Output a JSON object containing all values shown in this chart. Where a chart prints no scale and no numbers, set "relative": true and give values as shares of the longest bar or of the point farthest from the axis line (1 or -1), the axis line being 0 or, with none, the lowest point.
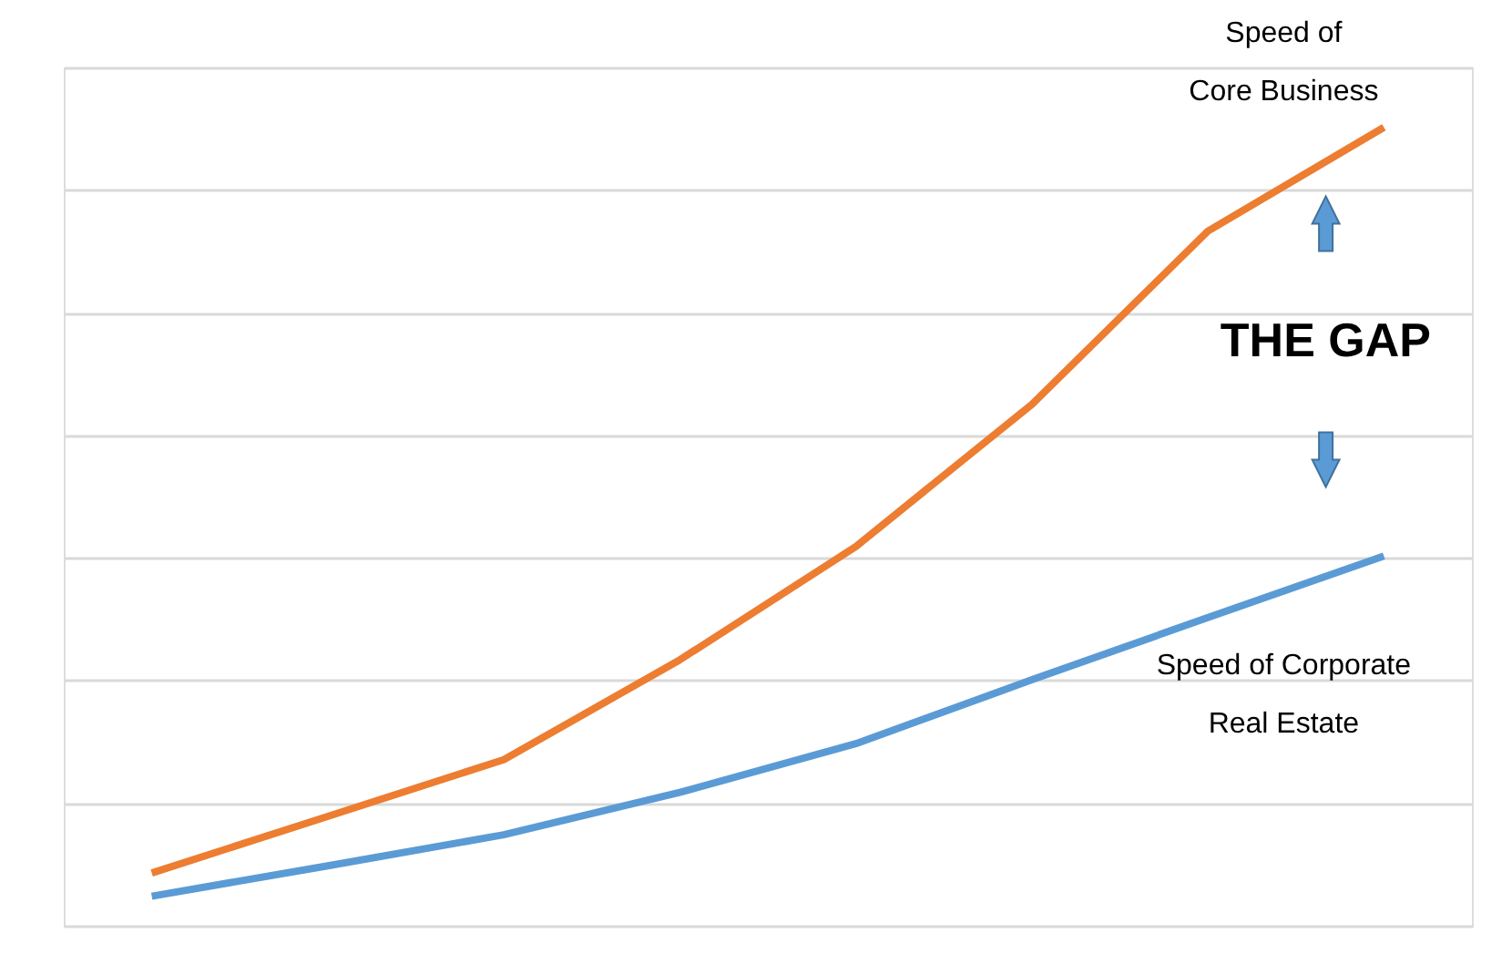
{
  "chart_data": {
    "type": "line",
    "relative": true,
    "categories": [
      null,
      null,
      null,
      null,
      null,
      null,
      null,
      null
    ],
    "series": [
      {
        "name": "Speed of Core Business",
        "color": "#ed7d31",
        "values": [
          0.066,
          0.137,
          0.208,
          0.333,
          0.475,
          0.653,
          0.87,
          1
        ]
      },
      {
        "name": "Speed of Corporate Real Estate",
        "color": "#5b9bd5",
        "values": [
          0.037,
          0.075,
          0.114,
          0.167,
          0.228,
          0.308,
          0.386,
          0.463
        ]
      }
    ],
    "annotations": [
      "THE GAP"
    ],
    "grid": "y",
    "line_style": "solid",
    "marker": "none"
  }
}
